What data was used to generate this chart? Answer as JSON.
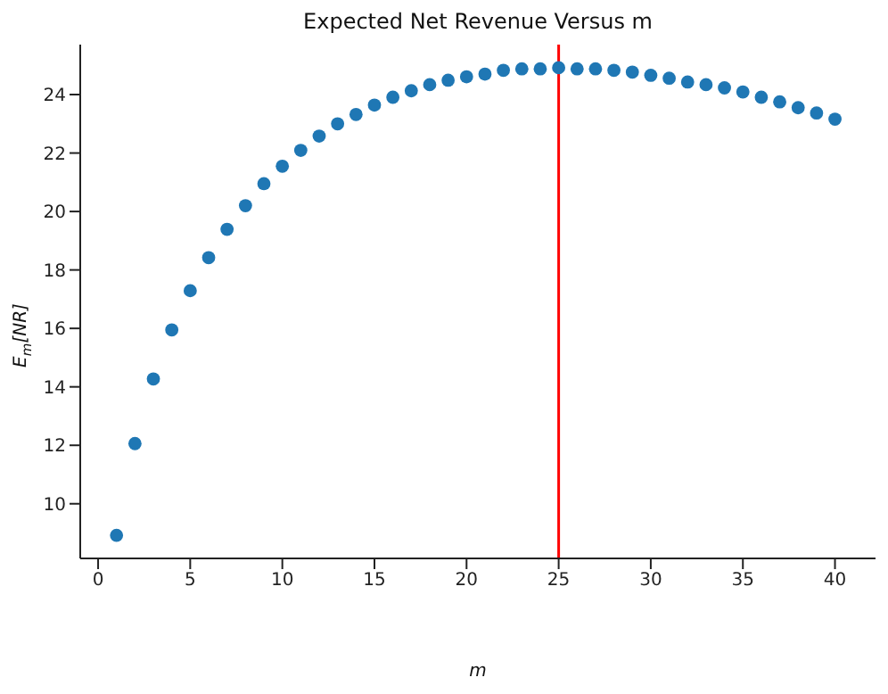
{
  "chart_data": {
    "type": "scatter",
    "title": "Expected Net Revenue Versus m",
    "xlabel": "m",
    "ylabel": "E$_{m}$[NR]",
    "x": [
      1,
      2,
      3,
      4,
      5,
      6,
      7,
      8,
      9,
      10,
      11,
      12,
      13,
      14,
      15,
      16,
      17,
      18,
      19,
      20,
      21,
      22,
      23,
      24,
      25,
      26,
      27,
      28,
      29,
      30,
      31,
      32,
      33,
      34,
      35,
      36,
      37,
      38,
      39,
      40
    ],
    "series": [
      {
        "color": "#1f77b4",
        "values": [
          8.92,
          12.06,
          14.27,
          15.95,
          17.29,
          18.42,
          19.39,
          20.2,
          20.95,
          21.55,
          22.09,
          22.58,
          23.0,
          23.32,
          23.64,
          23.91,
          24.13,
          24.34,
          24.49,
          24.61,
          24.7,
          24.83,
          24.88,
          24.88,
          24.92,
          24.88,
          24.88,
          24.83,
          24.77,
          24.66,
          24.56,
          24.43,
          24.34,
          24.23,
          24.09,
          23.91,
          23.75,
          23.55,
          23.37,
          23.16
        ]
      }
    ],
    "xlim": [
      -0.97,
      42.2
    ],
    "ylim": [
      8.13,
      25.71
    ],
    "xticks": [
      0,
      5,
      10,
      15,
      20,
      25,
      30,
      35,
      40
    ],
    "yticks": [
      10,
      12,
      14,
      16,
      18,
      20,
      22,
      24
    ],
    "ref_lines": [
      {
        "axis": "x",
        "value": 25,
        "color": "#ff0000"
      }
    ],
    "marker": "circle"
  }
}
